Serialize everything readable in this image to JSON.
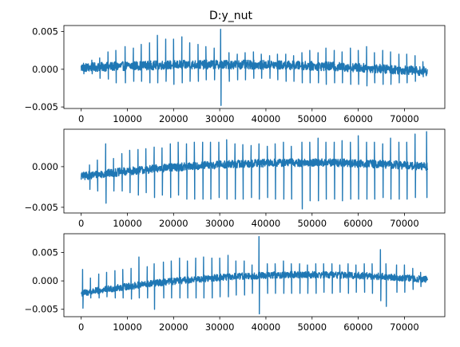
{
  "figure_title": "D:y_nut",
  "colors": {
    "series": "#1f77b4",
    "axes": "#000000",
    "background": "#ffffff"
  },
  "chart_data": [
    {
      "type": "line",
      "title": "D:y_nut",
      "xlabel": "",
      "ylabel": "",
      "xlim": [
        -3750,
        78750
      ],
      "ylim": [
        -0.0052,
        0.0058
      ],
      "xticks": [
        0,
        10000,
        20000,
        30000,
        40000,
        50000,
        60000,
        70000
      ],
      "xtick_labels": [
        "0",
        "10000",
        "20000",
        "30000",
        "40000",
        "50000",
        "60000",
        "70000"
      ],
      "yticks": [
        -0.005,
        0.0,
        0.005
      ],
      "ytick_labels": [
        "−0.005",
        "0.000",
        "0.005"
      ],
      "grid": false,
      "x_range": [
        0,
        75000
      ],
      "baseline": {
        "start": 0.0002,
        "mid": 0.0006,
        "end": -0.0003
      },
      "noise_amplitude": 0.0006,
      "peaks": [
        {
          "x": 500,
          "y": 0.0008,
          "dip": -0.0006
        },
        {
          "x": 2300,
          "y": 0.0012,
          "dip": -0.0006
        },
        {
          "x": 4000,
          "y": 0.0015,
          "dip": -0.0012
        },
        {
          "x": 5800,
          "y": 0.0023,
          "dip": -0.0013
        },
        {
          "x": 7500,
          "y": 0.0025,
          "dip": -0.0018
        },
        {
          "x": 9500,
          "y": 0.003,
          "dip": -0.0018
        },
        {
          "x": 11300,
          "y": 0.0028,
          "dip": -0.0016
        },
        {
          "x": 13000,
          "y": 0.0033,
          "dip": -0.0016
        },
        {
          "x": 14800,
          "y": 0.0035,
          "dip": -0.0018
        },
        {
          "x": 16500,
          "y": 0.0045,
          "dip": -0.0018
        },
        {
          "x": 18300,
          "y": 0.004,
          "dip": -0.0016
        },
        {
          "x": 20000,
          "y": 0.004,
          "dip": -0.002
        },
        {
          "x": 21800,
          "y": 0.0043,
          "dip": -0.0018
        },
        {
          "x": 23500,
          "y": 0.0035,
          "dip": -0.0016
        },
        {
          "x": 25300,
          "y": 0.0033,
          "dip": -0.0016
        },
        {
          "x": 27000,
          "y": 0.003,
          "dip": -0.0014
        },
        {
          "x": 28800,
          "y": 0.0028,
          "dip": -0.0014
        },
        {
          "x": 30200,
          "y": 0.0053,
          "dip": -0.0048
        },
        {
          "x": 32000,
          "y": 0.0022,
          "dip": -0.0016
        },
        {
          "x": 33800,
          "y": 0.002,
          "dip": -0.0014
        },
        {
          "x": 35500,
          "y": 0.0022,
          "dip": -0.0014
        },
        {
          "x": 37300,
          "y": 0.0023,
          "dip": -0.0012
        },
        {
          "x": 39000,
          "y": 0.002,
          "dip": -0.0012
        },
        {
          "x": 40800,
          "y": 0.0018,
          "dip": -0.0012
        },
        {
          "x": 42500,
          "y": 0.002,
          "dip": -0.0014
        },
        {
          "x": 44300,
          "y": 0.002,
          "dip": -0.0016
        },
        {
          "x": 46000,
          "y": 0.0018,
          "dip": -0.0016
        },
        {
          "x": 47800,
          "y": 0.0022,
          "dip": -0.0018
        },
        {
          "x": 49500,
          "y": 0.0025,
          "dip": -0.0018
        },
        {
          "x": 51300,
          "y": 0.0022,
          "dip": -0.0018
        },
        {
          "x": 53000,
          "y": 0.0028,
          "dip": -0.002
        },
        {
          "x": 54800,
          "y": 0.0025,
          "dip": -0.0018
        },
        {
          "x": 56500,
          "y": 0.0023,
          "dip": -0.0018
        },
        {
          "x": 58300,
          "y": 0.0028,
          "dip": -0.002
        },
        {
          "x": 60000,
          "y": 0.0025,
          "dip": -0.002
        },
        {
          "x": 61800,
          "y": 0.003,
          "dip": -0.0022
        },
        {
          "x": 63500,
          "y": 0.0022,
          "dip": -0.0018
        },
        {
          "x": 65300,
          "y": 0.0025,
          "dip": -0.002
        },
        {
          "x": 67000,
          "y": 0.0023,
          "dip": -0.002
        },
        {
          "x": 68800,
          "y": 0.002,
          "dip": -0.0018
        },
        {
          "x": 70500,
          "y": 0.002,
          "dip": -0.0018
        },
        {
          "x": 72300,
          "y": 0.0018,
          "dip": -0.0016
        },
        {
          "x": 74000,
          "y": 0.001,
          "dip": -0.001
        }
      ]
    },
    {
      "type": "line",
      "title": "",
      "xlabel": "",
      "ylabel": "",
      "xlim": [
        -3750,
        78750
      ],
      "ylim": [
        -0.0057,
        0.0046
      ],
      "xticks": [
        0,
        10000,
        20000,
        30000,
        40000,
        50000,
        60000,
        70000
      ],
      "xtick_labels": [
        "0",
        "10000",
        "20000",
        "30000",
        "40000",
        "50000",
        "60000",
        "70000"
      ],
      "yticks": [
        -0.005,
        0.0
      ],
      "ytick_labels": [
        "−0.005",
        "0.000"
      ],
      "grid": false,
      "x_range": [
        0,
        75000
      ],
      "baseline": {
        "start": -0.0012,
        "mid": 0.0004,
        "end": 0.0
      },
      "noise_amplitude": 0.0005,
      "peaks": [
        {
          "x": 1800,
          "y": 0.0002,
          "dip": -0.0028
        },
        {
          "x": 3500,
          "y": 0.0008,
          "dip": -0.003
        },
        {
          "x": 5300,
          "y": 0.0028,
          "dip": -0.0045
        },
        {
          "x": 7000,
          "y": 0.001,
          "dip": -0.003
        },
        {
          "x": 8800,
          "y": 0.0016,
          "dip": -0.003
        },
        {
          "x": 10500,
          "y": 0.002,
          "dip": -0.0032
        },
        {
          "x": 12300,
          "y": 0.0021,
          "dip": -0.0035
        },
        {
          "x": 14000,
          "y": 0.0022,
          "dip": -0.0032
        },
        {
          "x": 15800,
          "y": 0.0024,
          "dip": -0.0038
        },
        {
          "x": 17500,
          "y": 0.0023,
          "dip": -0.0035
        },
        {
          "x": 19300,
          "y": 0.0028,
          "dip": -0.0038
        },
        {
          "x": 21000,
          "y": 0.003,
          "dip": -0.0035
        },
        {
          "x": 22800,
          "y": 0.0028,
          "dip": -0.004
        },
        {
          "x": 24500,
          "y": 0.003,
          "dip": -0.004
        },
        {
          "x": 26300,
          "y": 0.003,
          "dip": -0.004
        },
        {
          "x": 28000,
          "y": 0.003,
          "dip": -0.004
        },
        {
          "x": 29800,
          "y": 0.003,
          "dip": -0.0038
        },
        {
          "x": 31500,
          "y": 0.0033,
          "dip": -0.004
        },
        {
          "x": 33300,
          "y": 0.0028,
          "dip": -0.004
        },
        {
          "x": 35000,
          "y": 0.0027,
          "dip": -0.004
        },
        {
          "x": 36800,
          "y": 0.0026,
          "dip": -0.0038
        },
        {
          "x": 38500,
          "y": 0.0028,
          "dip": -0.004
        },
        {
          "x": 40300,
          "y": 0.0025,
          "dip": -0.0038
        },
        {
          "x": 42000,
          "y": 0.0028,
          "dip": -0.004
        },
        {
          "x": 43800,
          "y": 0.003,
          "dip": -0.004
        },
        {
          "x": 45500,
          "y": 0.0025,
          "dip": -0.004
        },
        {
          "x": 47800,
          "y": 0.003,
          "dip": -0.0052
        },
        {
          "x": 49500,
          "y": 0.003,
          "dip": -0.0042
        },
        {
          "x": 51300,
          "y": 0.0035,
          "dip": -0.0042
        },
        {
          "x": 53000,
          "y": 0.003,
          "dip": -0.004
        },
        {
          "x": 54800,
          "y": 0.003,
          "dip": -0.004
        },
        {
          "x": 56500,
          "y": 0.0032,
          "dip": -0.0042
        },
        {
          "x": 58300,
          "y": 0.003,
          "dip": -0.004
        },
        {
          "x": 60000,
          "y": 0.0038,
          "dip": -0.004
        },
        {
          "x": 61800,
          "y": 0.003,
          "dip": -0.004
        },
        {
          "x": 63500,
          "y": 0.003,
          "dip": -0.004
        },
        {
          "x": 65300,
          "y": 0.0028,
          "dip": -0.0038
        },
        {
          "x": 67000,
          "y": 0.0035,
          "dip": -0.004
        },
        {
          "x": 68800,
          "y": 0.003,
          "dip": -0.004
        },
        {
          "x": 70500,
          "y": 0.003,
          "dip": -0.004
        },
        {
          "x": 72300,
          "y": 0.004,
          "dip": -0.0038
        },
        {
          "x": 74800,
          "y": 0.0043,
          "dip": -0.0038
        }
      ]
    },
    {
      "type": "line",
      "title": "",
      "xlabel": "",
      "ylabel": "",
      "xlim": [
        -3750,
        78750
      ],
      "ylim": [
        -0.0063,
        0.0083
      ],
      "xticks": [
        0,
        10000,
        20000,
        30000,
        40000,
        50000,
        60000,
        70000
      ],
      "xtick_labels": [
        "0",
        "10000",
        "20000",
        "30000",
        "40000",
        "50000",
        "60000",
        "70000"
      ],
      "yticks": [
        -0.005,
        0.0,
        0.005
      ],
      "ytick_labels": [
        "−0.005",
        "0.000",
        "0.005"
      ],
      "grid": false,
      "x_range": [
        0,
        75000
      ],
      "baseline": {
        "start": -0.0022,
        "mid": 0.0009,
        "end": 0.0002
      },
      "noise_amplitude": 0.0006,
      "peaks": [
        {
          "x": 300,
          "y": 0.002,
          "dip": -0.0048
        },
        {
          "x": 2000,
          "y": 0.0005,
          "dip": -0.003
        },
        {
          "x": 3800,
          "y": 0.0012,
          "dip": -0.003
        },
        {
          "x": 5500,
          "y": 0.0015,
          "dip": -0.0028
        },
        {
          "x": 7300,
          "y": 0.0018,
          "dip": -0.003
        },
        {
          "x": 9000,
          "y": 0.002,
          "dip": -0.003
        },
        {
          "x": 10800,
          "y": 0.0022,
          "dip": -0.0032
        },
        {
          "x": 12500,
          "y": 0.0042,
          "dip": -0.003
        },
        {
          "x": 14300,
          "y": 0.0025,
          "dip": -0.003
        },
        {
          "x": 15800,
          "y": 0.003,
          "dip": -0.005
        },
        {
          "x": 17800,
          "y": 0.0033,
          "dip": -0.003
        },
        {
          "x": 19500,
          "y": 0.0035,
          "dip": -0.003
        },
        {
          "x": 21300,
          "y": 0.004,
          "dip": -0.003
        },
        {
          "x": 23000,
          "y": 0.0035,
          "dip": -0.003
        },
        {
          "x": 24800,
          "y": 0.004,
          "dip": -0.003
        },
        {
          "x": 26500,
          "y": 0.0042,
          "dip": -0.003
        },
        {
          "x": 28300,
          "y": 0.004,
          "dip": -0.003
        },
        {
          "x": 30000,
          "y": 0.004,
          "dip": -0.0028
        },
        {
          "x": 31800,
          "y": 0.0045,
          "dip": -0.0028
        },
        {
          "x": 33500,
          "y": 0.0035,
          "dip": -0.0025
        },
        {
          "x": 35300,
          "y": 0.0035,
          "dip": -0.0025
        },
        {
          "x": 37000,
          "y": 0.0028,
          "dip": -0.0022
        },
        {
          "x": 38500,
          "y": 0.0078,
          "dip": -0.0058
        },
        {
          "x": 40300,
          "y": 0.003,
          "dip": -0.0022
        },
        {
          "x": 42000,
          "y": 0.003,
          "dip": -0.0022
        },
        {
          "x": 43800,
          "y": 0.0035,
          "dip": -0.0022
        },
        {
          "x": 45500,
          "y": 0.003,
          "dip": -0.0022
        },
        {
          "x": 47300,
          "y": 0.003,
          "dip": -0.0022
        },
        {
          "x": 49000,
          "y": 0.0028,
          "dip": -0.0022
        },
        {
          "x": 50800,
          "y": 0.003,
          "dip": -0.0022
        },
        {
          "x": 52500,
          "y": 0.003,
          "dip": -0.002
        },
        {
          "x": 54300,
          "y": 0.003,
          "dip": -0.0022
        },
        {
          "x": 56000,
          "y": 0.0028,
          "dip": -0.002
        },
        {
          "x": 57800,
          "y": 0.003,
          "dip": -0.0022
        },
        {
          "x": 59500,
          "y": 0.0028,
          "dip": -0.002
        },
        {
          "x": 61300,
          "y": 0.003,
          "dip": -0.002
        },
        {
          "x": 63000,
          "y": 0.003,
          "dip": -0.0022
        },
        {
          "x": 64800,
          "y": 0.0055,
          "dip": -0.0035
        },
        {
          "x": 66000,
          "y": 0.003,
          "dip": -0.0045
        },
        {
          "x": 68300,
          "y": 0.0028,
          "dip": -0.002
        },
        {
          "x": 70000,
          "y": 0.0028,
          "dip": -0.002
        },
        {
          "x": 71800,
          "y": 0.0022,
          "dip": -0.0015
        },
        {
          "x": 73500,
          "y": 0.0015,
          "dip": -0.001
        }
      ]
    }
  ]
}
